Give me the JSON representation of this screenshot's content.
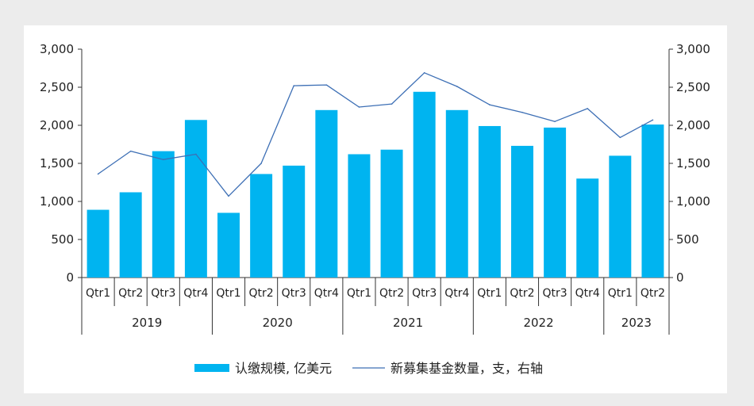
{
  "chart_data": {
    "type": "bar",
    "title": "",
    "xlabel": "",
    "ylabel": "",
    "years": [
      {
        "label": "2019",
        "quarters": 4
      },
      {
        "label": "2020",
        "quarters": 4
      },
      {
        "label": "2021",
        "quarters": 4
      },
      {
        "label": "2022",
        "quarters": 4
      },
      {
        "label": "2023",
        "quarters": 2
      }
    ],
    "categories": [
      "Qtr1",
      "Qtr2",
      "Qtr3",
      "Qtr4",
      "Qtr1",
      "Qtr2",
      "Qtr3",
      "Qtr4",
      "Qtr1",
      "Qtr2",
      "Qtr3",
      "Qtr4",
      "Qtr1",
      "Qtr2",
      "Qtr3",
      "Qtr4",
      "Qtr1",
      "Qtr2"
    ],
    "series": [
      {
        "name": "认缴规模, 亿美元",
        "kind": "bar",
        "axis": "left",
        "color": "#00b4f0",
        "values": [
          890,
          1120,
          1660,
          2070,
          850,
          1360,
          1470,
          2200,
          1620,
          1680,
          2440,
          2200,
          1990,
          1730,
          1970,
          1300,
          1600,
          2010
        ]
      },
      {
        "name": "新募集基金数量，支，右轴",
        "kind": "line",
        "axis": "right",
        "color": "#3d6fb5",
        "values": [
          1360,
          1660,
          1550,
          1620,
          1070,
          1500,
          2520,
          2530,
          2240,
          2280,
          2690,
          2510,
          2270,
          2170,
          2050,
          2220,
          1840,
          2070
        ]
      }
    ],
    "y_left": {
      "min": 0,
      "max": 3000,
      "ticks": [
        "0",
        "500",
        "1,000",
        "1,500",
        "2,000",
        "2,500",
        "3,000"
      ]
    },
    "y_right": {
      "min": 0,
      "max": 3000,
      "ticks": [
        "0",
        "500",
        "1,000",
        "1,500",
        "2,000",
        "2,500",
        "3,000"
      ]
    },
    "legend_position": "bottom"
  }
}
